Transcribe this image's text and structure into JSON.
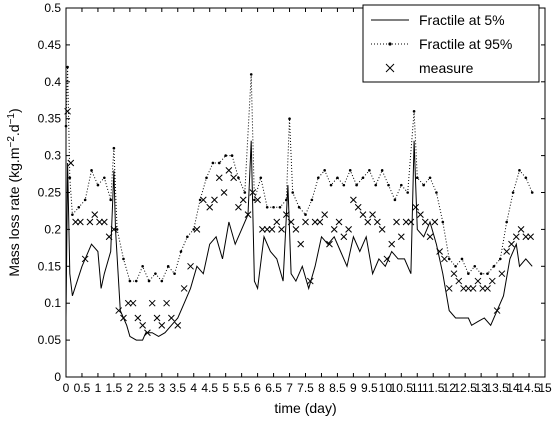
{
  "chart_data": {
    "type": "line",
    "title": "",
    "xlabel": "time (day)",
    "ylabel": "Mass loss rate (kg.m",
    "ylabel_sup1": "−2",
    "ylabel_mid": ".d",
    "ylabel_sup2": "−1",
    "ylabel_end": ")",
    "xlim": [
      0,
      15
    ],
    "ylim": [
      0,
      0.5
    ],
    "xticks": [
      "0",
      "0.5",
      "1",
      "1.5",
      "2",
      "2.5",
      "3",
      "3.5",
      "4",
      "4.5",
      "5",
      "5.5",
      "6",
      "6.5",
      "7",
      "7.5",
      "8",
      "8.5",
      "9",
      "9.5",
      "10",
      "10.5",
      "11",
      "11.5",
      "12",
      "12.5",
      "13",
      "13.5",
      "14",
      "14.5",
      "15"
    ],
    "yticks": [
      "0",
      "0.05",
      "0.1",
      "0.15",
      "0.2",
      "0.25",
      "0.3",
      "0.35",
      "0.4",
      "0.45",
      "0.5"
    ],
    "grid": false,
    "legend_position": "top-right",
    "series": [
      {
        "name": "Fractile at 5%",
        "style": "solid",
        "color": "#000000",
        "points": [
          [
            0,
            0.08
          ],
          [
            0.05,
            0.29
          ],
          [
            0.12,
            0.14
          ],
          [
            0.2,
            0.11
          ],
          [
            0.5,
            0.15
          ],
          [
            0.8,
            0.18
          ],
          [
            1.0,
            0.17
          ],
          [
            1.1,
            0.12
          ],
          [
            1.2,
            0.14
          ],
          [
            1.4,
            0.17
          ],
          [
            1.5,
            0.28
          ],
          [
            1.55,
            0.2
          ],
          [
            1.7,
            0.09
          ],
          [
            1.9,
            0.07
          ],
          [
            2.0,
            0.055
          ],
          [
            2.2,
            0.05
          ],
          [
            2.4,
            0.05
          ],
          [
            2.5,
            0.06
          ],
          [
            2.7,
            0.06
          ],
          [
            2.9,
            0.055
          ],
          [
            3.1,
            0.06
          ],
          [
            3.3,
            0.07
          ],
          [
            3.5,
            0.08
          ],
          [
            3.7,
            0.1
          ],
          [
            3.9,
            0.12
          ],
          [
            4.1,
            0.15
          ],
          [
            4.3,
            0.14
          ],
          [
            4.5,
            0.18
          ],
          [
            4.7,
            0.19
          ],
          [
            4.9,
            0.16
          ],
          [
            5.1,
            0.21
          ],
          [
            5.3,
            0.18
          ],
          [
            5.5,
            0.2
          ],
          [
            5.7,
            0.22
          ],
          [
            5.8,
            0.32
          ],
          [
            5.9,
            0.13
          ],
          [
            6.0,
            0.12
          ],
          [
            6.2,
            0.19
          ],
          [
            6.4,
            0.17
          ],
          [
            6.6,
            0.16
          ],
          [
            6.8,
            0.13
          ],
          [
            6.95,
            0.26
          ],
          [
            7.05,
            0.14
          ],
          [
            7.2,
            0.13
          ],
          [
            7.4,
            0.15
          ],
          [
            7.6,
            0.12
          ],
          [
            7.8,
            0.15
          ],
          [
            8.0,
            0.19
          ],
          [
            8.2,
            0.18
          ],
          [
            8.4,
            0.19
          ],
          [
            8.6,
            0.17
          ],
          [
            8.8,
            0.15
          ],
          [
            9.0,
            0.19
          ],
          [
            9.2,
            0.17
          ],
          [
            9.4,
            0.19
          ],
          [
            9.6,
            0.14
          ],
          [
            9.8,
            0.16
          ],
          [
            10.0,
            0.15
          ],
          [
            10.2,
            0.17
          ],
          [
            10.4,
            0.16
          ],
          [
            10.6,
            0.16
          ],
          [
            10.8,
            0.14
          ],
          [
            10.9,
            0.32
          ],
          [
            11.0,
            0.2
          ],
          [
            11.2,
            0.19
          ],
          [
            11.4,
            0.21
          ],
          [
            11.6,
            0.18
          ],
          [
            11.8,
            0.14
          ],
          [
            12.0,
            0.09
          ],
          [
            12.2,
            0.08
          ],
          [
            12.4,
            0.08
          ],
          [
            12.6,
            0.08
          ],
          [
            12.7,
            0.07
          ],
          [
            12.9,
            0.075
          ],
          [
            13.1,
            0.08
          ],
          [
            13.3,
            0.07
          ],
          [
            13.5,
            0.09
          ],
          [
            13.7,
            0.11
          ],
          [
            13.9,
            0.16
          ],
          [
            14.1,
            0.18
          ],
          [
            14.2,
            0.15
          ],
          [
            14.4,
            0.16
          ],
          [
            14.6,
            0.15
          ]
        ]
      },
      {
        "name": "Fractile at 95%",
        "style": "dash-dot",
        "color": "#000000",
        "points": [
          [
            0,
            0.34
          ],
          [
            0.05,
            0.42
          ],
          [
            0.12,
            0.27
          ],
          [
            0.2,
            0.22
          ],
          [
            0.4,
            0.23
          ],
          [
            0.6,
            0.24
          ],
          [
            0.8,
            0.28
          ],
          [
            1.0,
            0.26
          ],
          [
            1.2,
            0.27
          ],
          [
            1.4,
            0.24
          ],
          [
            1.5,
            0.31
          ],
          [
            1.6,
            0.2
          ],
          [
            1.8,
            0.16
          ],
          [
            2.0,
            0.13
          ],
          [
            2.2,
            0.13
          ],
          [
            2.4,
            0.15
          ],
          [
            2.6,
            0.13
          ],
          [
            2.8,
            0.14
          ],
          [
            3.0,
            0.13
          ],
          [
            3.2,
            0.15
          ],
          [
            3.4,
            0.14
          ],
          [
            3.6,
            0.17
          ],
          [
            3.8,
            0.19
          ],
          [
            4.0,
            0.2
          ],
          [
            4.2,
            0.24
          ],
          [
            4.4,
            0.27
          ],
          [
            4.6,
            0.29
          ],
          [
            4.8,
            0.29
          ],
          [
            5.0,
            0.3
          ],
          [
            5.2,
            0.3
          ],
          [
            5.4,
            0.27
          ],
          [
            5.6,
            0.25
          ],
          [
            5.8,
            0.41
          ],
          [
            5.9,
            0.24
          ],
          [
            6.1,
            0.27
          ],
          [
            6.3,
            0.23
          ],
          [
            6.5,
            0.23
          ],
          [
            6.7,
            0.23
          ],
          [
            6.9,
            0.24
          ],
          [
            7.0,
            0.35
          ],
          [
            7.1,
            0.25
          ],
          [
            7.3,
            0.23
          ],
          [
            7.5,
            0.22
          ],
          [
            7.7,
            0.24
          ],
          [
            7.9,
            0.27
          ],
          [
            8.1,
            0.28
          ],
          [
            8.3,
            0.26
          ],
          [
            8.5,
            0.27
          ],
          [
            8.7,
            0.26
          ],
          [
            8.9,
            0.28
          ],
          [
            9.1,
            0.26
          ],
          [
            9.3,
            0.27
          ],
          [
            9.5,
            0.28
          ],
          [
            9.7,
            0.26
          ],
          [
            9.9,
            0.28
          ],
          [
            10.1,
            0.26
          ],
          [
            10.3,
            0.24
          ],
          [
            10.5,
            0.26
          ],
          [
            10.7,
            0.25
          ],
          [
            10.9,
            0.36
          ],
          [
            11.0,
            0.27
          ],
          [
            11.2,
            0.26
          ],
          [
            11.4,
            0.27
          ],
          [
            11.6,
            0.25
          ],
          [
            11.8,
            0.21
          ],
          [
            12.0,
            0.16
          ],
          [
            12.2,
            0.15
          ],
          [
            12.4,
            0.16
          ],
          [
            12.6,
            0.14
          ],
          [
            12.8,
            0.15
          ],
          [
            13.0,
            0.14
          ],
          [
            13.2,
            0.14
          ],
          [
            13.4,
            0.15
          ],
          [
            13.6,
            0.16
          ],
          [
            13.8,
            0.21
          ],
          [
            14.0,
            0.25
          ],
          [
            14.2,
            0.28
          ],
          [
            14.4,
            0.27
          ],
          [
            14.6,
            0.25
          ]
        ]
      },
      {
        "name": "measure",
        "style": "x-marker",
        "color": "#000000",
        "points": [
          [
            0.05,
            0.36
          ],
          [
            0.15,
            0.29
          ],
          [
            0.3,
            0.21
          ],
          [
            0.45,
            0.21
          ],
          [
            0.6,
            0.16
          ],
          [
            0.75,
            0.21
          ],
          [
            0.9,
            0.22
          ],
          [
            1.05,
            0.21
          ],
          [
            1.2,
            0.21
          ],
          [
            1.35,
            0.19
          ],
          [
            1.5,
            0.2
          ],
          [
            1.65,
            0.09
          ],
          [
            1.8,
            0.08
          ],
          [
            1.95,
            0.1
          ],
          [
            2.1,
            0.1
          ],
          [
            2.25,
            0.08
          ],
          [
            2.4,
            0.07
          ],
          [
            2.55,
            0.06
          ],
          [
            2.7,
            0.1
          ],
          [
            2.85,
            0.08
          ],
          [
            3.0,
            0.07
          ],
          [
            3.15,
            0.1
          ],
          [
            3.3,
            0.08
          ],
          [
            3.5,
            0.07
          ],
          [
            3.7,
            0.12
          ],
          [
            3.9,
            0.15
          ],
          [
            4.1,
            0.2
          ],
          [
            4.3,
            0.24
          ],
          [
            4.5,
            0.23
          ],
          [
            4.65,
            0.24
          ],
          [
            4.8,
            0.27
          ],
          [
            4.95,
            0.25
          ],
          [
            5.1,
            0.28
          ],
          [
            5.25,
            0.27
          ],
          [
            5.4,
            0.23
          ],
          [
            5.55,
            0.24
          ],
          [
            5.7,
            0.22
          ],
          [
            5.85,
            0.25
          ],
          [
            6.0,
            0.24
          ],
          [
            6.15,
            0.2
          ],
          [
            6.3,
            0.2
          ],
          [
            6.45,
            0.2
          ],
          [
            6.6,
            0.21
          ],
          [
            6.75,
            0.2
          ],
          [
            6.9,
            0.22
          ],
          [
            7.05,
            0.21
          ],
          [
            7.2,
            0.2
          ],
          [
            7.35,
            0.18
          ],
          [
            7.5,
            0.21
          ],
          [
            7.65,
            0.13
          ],
          [
            7.8,
            0.21
          ],
          [
            7.95,
            0.21
          ],
          [
            8.1,
            0.22
          ],
          [
            8.25,
            0.18
          ],
          [
            8.4,
            0.2
          ],
          [
            8.55,
            0.21
          ],
          [
            8.7,
            0.19
          ],
          [
            8.85,
            0.2
          ],
          [
            9.0,
            0.24
          ],
          [
            9.15,
            0.23
          ],
          [
            9.3,
            0.22
          ],
          [
            9.45,
            0.21
          ],
          [
            9.6,
            0.22
          ],
          [
            9.75,
            0.21
          ],
          [
            9.9,
            0.2
          ],
          [
            10.05,
            0.16
          ],
          [
            10.2,
            0.18
          ],
          [
            10.35,
            0.21
          ],
          [
            10.5,
            0.19
          ],
          [
            10.65,
            0.21
          ],
          [
            10.8,
            0.21
          ],
          [
            10.95,
            0.23
          ],
          [
            11.1,
            0.22
          ],
          [
            11.25,
            0.21
          ],
          [
            11.4,
            0.19
          ],
          [
            11.55,
            0.21
          ],
          [
            11.7,
            0.17
          ],
          [
            11.85,
            0.16
          ],
          [
            12.0,
            0.12
          ],
          [
            12.15,
            0.14
          ],
          [
            12.3,
            0.13
          ],
          [
            12.45,
            0.12
          ],
          [
            12.6,
            0.12
          ],
          [
            12.75,
            0.12
          ],
          [
            12.9,
            0.13
          ],
          [
            13.05,
            0.12
          ],
          [
            13.2,
            0.12
          ],
          [
            13.35,
            0.13
          ],
          [
            13.5,
            0.09
          ],
          [
            13.65,
            0.14
          ],
          [
            13.8,
            0.17
          ],
          [
            13.95,
            0.18
          ],
          [
            14.1,
            0.19
          ],
          [
            14.25,
            0.2
          ],
          [
            14.4,
            0.19
          ],
          [
            14.55,
            0.19
          ]
        ]
      }
    ]
  }
}
